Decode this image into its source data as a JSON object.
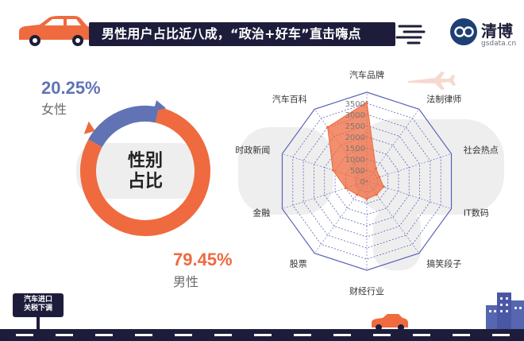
{
  "header": {
    "title": "男性用户占比近八成，“政治+好车”直击嗨点",
    "brand_name": "清博",
    "brand_url": "gsdata.cn"
  },
  "sign": {
    "line1": "汽车进口",
    "line2": "关税下调"
  },
  "colors": {
    "accent": "#ef6a3e",
    "secondary": "#6173b4",
    "dark": "#1d1d3b",
    "grid": "#5b62b8"
  },
  "chart_data": [
    {
      "type": "pie",
      "style": "donut",
      "center_label": [
        "性别",
        "占比"
      ],
      "categories": [
        "女性",
        "男性"
      ],
      "values": [
        20.25,
        79.45
      ],
      "value_labels": [
        "20.25%",
        "79.45%"
      ],
      "colors": [
        "#6173b4",
        "#ef6a3e"
      ]
    },
    {
      "type": "radar",
      "categories": [
        "汽车品牌",
        "法制律师",
        "社会热点",
        "IT数码",
        "搞笑段子",
        "财经行业",
        "股票",
        "金融",
        "时政新闻",
        "汽车百科"
      ],
      "values": [
        3550,
        700,
        600,
        800,
        750,
        800,
        750,
        1000,
        1600,
        3000
      ],
      "r_ticks": [
        0,
        500,
        1000,
        1500,
        2000,
        2500,
        3000,
        3500
      ],
      "tick_labels": [
        "0",
        "500",
        "1000",
        "1500",
        "2000",
        "2500",
        "3000",
        "3500"
      ],
      "rlim": [
        0,
        4000
      ],
      "fill_color": "#ef6a3e"
    }
  ]
}
